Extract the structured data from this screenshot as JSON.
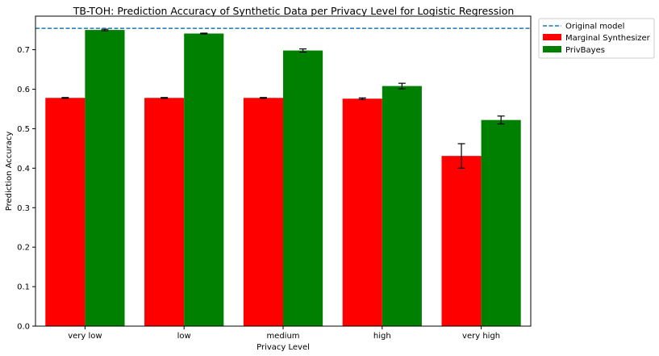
{
  "chart_data": {
    "type": "bar",
    "title": "TB-TOH: Prediction Accuracy of Synthetic Data per Privacy Level for Logistic Regression",
    "xlabel": "Privacy Level",
    "ylabel": "Prediction Accuracy",
    "categories": [
      "very low",
      "low",
      "medium",
      "high",
      "very high"
    ],
    "ylim": [
      0,
      0.785
    ],
    "yticks": [
      "0.0",
      "0.1",
      "0.2",
      "0.3",
      "0.4",
      "0.5",
      "0.6",
      "0.7"
    ],
    "series": [
      {
        "name": "Marginal Synthesizer",
        "color": "#ff0000",
        "values": [
          0.578,
          0.578,
          0.578,
          0.576,
          0.431
        ],
        "errors": [
          0.001,
          0.001,
          0.001,
          0.002,
          0.031
        ]
      },
      {
        "name": "PrivBayes",
        "color": "#008000",
        "values": [
          0.75,
          0.741,
          0.698,
          0.608,
          0.522
        ],
        "errors": [
          0.002,
          0.001,
          0.004,
          0.007,
          0.01
        ]
      }
    ],
    "reference_line": {
      "name": "Original model",
      "value": 0.754,
      "color": "#1f77b4",
      "style": "dashed"
    },
    "grid": false,
    "legend_position": "outside top-right"
  }
}
